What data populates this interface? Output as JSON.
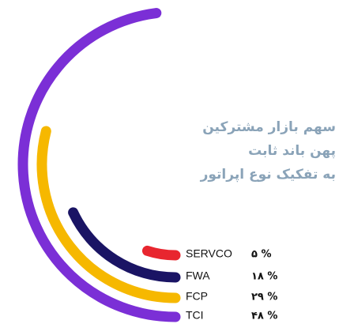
{
  "chart_data": {
    "type": "radial-bar",
    "title": [
      "سهم بازار مشترکین",
      "پهن باند ثابت",
      "به تفکیک نوع اپراتور"
    ],
    "categories": [
      "SERVCO",
      "FWA",
      "FCP",
      "TCI"
    ],
    "values": [
      5,
      18,
      29,
      48
    ],
    "value_labels": [
      "۵ %",
      "۱۸ %",
      "۲۹ %",
      "۴۸ %"
    ],
    "colors": [
      "#e8262f",
      "#1a1464",
      "#f6b800",
      "#7b2fd6"
    ]
  }
}
